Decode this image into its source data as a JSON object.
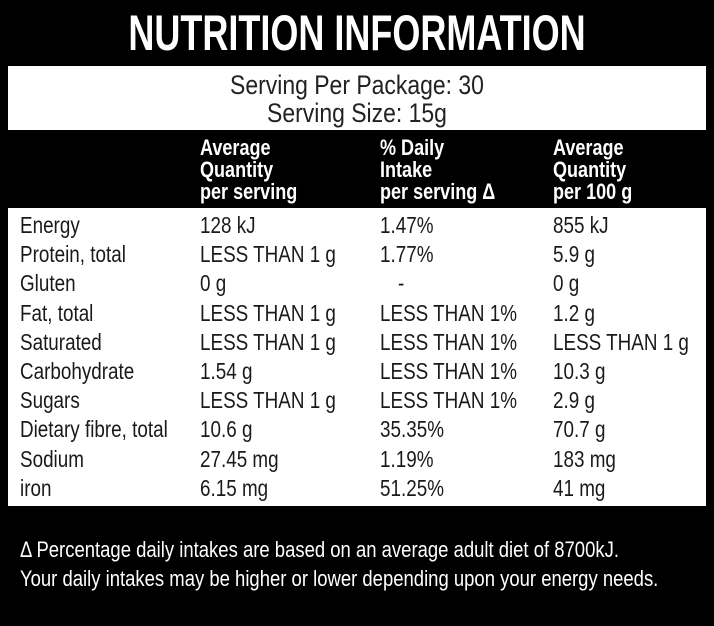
{
  "header": {
    "title": "NUTRITION INFORMATION",
    "serving_per_package": "Serving Per Package: 30",
    "serving_size": "Serving Size: 15g"
  },
  "table": {
    "columns": [
      [
        "Average",
        "Quantity",
        "per serving"
      ],
      [
        "% Daily",
        "Intake",
        "per serving Δ"
      ],
      [
        "Average",
        "Quantity",
        "per 100 g"
      ]
    ],
    "rows": [
      [
        "Energy",
        "128 kJ",
        "1.47%",
        "855 kJ"
      ],
      [
        "Protein, total",
        "LESS THAN 1 g",
        "1.77%",
        "5.9 g"
      ],
      [
        "Gluten",
        "0 g",
        "-",
        "0 g"
      ],
      [
        "Fat, total",
        "LESS THAN 1 g",
        "LESS THAN 1%",
        "1.2 g"
      ],
      [
        "Saturated",
        "LESS THAN 1 g",
        "LESS THAN 1%",
        "LESS THAN 1 g"
      ],
      [
        "Carbohydrate",
        "1.54 g",
        "LESS THAN 1%",
        "10.3 g"
      ],
      [
        "Sugars",
        "LESS THAN 1 g",
        "LESS THAN 1%",
        "2.9 g"
      ],
      [
        "Dietary fibre, total",
        "10.6 g",
        "35.35%",
        "70.7 g"
      ],
      [
        "Sodium",
        "27.45 mg",
        "1.19%",
        "183 mg"
      ],
      [
        "iron",
        "6.15 mg",
        "51.25%",
        "41 mg"
      ]
    ]
  },
  "footer": {
    "lines": [
      "Δ Percentage daily intakes are based on an average adult diet of 8700kJ.",
      "Your daily intakes may be higher or lower depending upon your energy needs."
    ]
  }
}
